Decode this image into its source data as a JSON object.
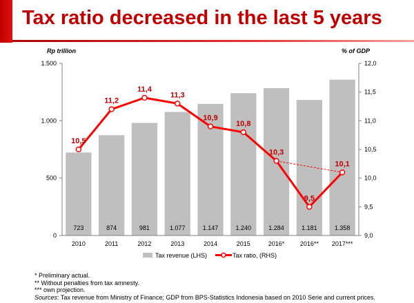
{
  "header": {
    "title": "Tax ratio decreased in the last 5 years"
  },
  "chart_data": {
    "type": "bar+line",
    "categories": [
      "2010",
      "2011",
      "2012",
      "2013",
      "2014",
      "2015",
      "2016*",
      "2016**",
      "2017***"
    ],
    "series": [
      {
        "name": "Tax revenue (LHS)",
        "type": "bar",
        "axis": "left",
        "values": [
          723,
          874,
          981,
          1077,
          1147,
          1240,
          1284,
          1181,
          1358
        ],
        "labels": [
          "723",
          "874",
          "981",
          "1.077",
          "1.147",
          "1.240",
          "1.284",
          "1.181",
          "1.358"
        ]
      },
      {
        "name": "Tax ratio, (RHS)",
        "type": "line",
        "axis": "right",
        "values": [
          10.5,
          11.2,
          11.4,
          11.3,
          10.9,
          10.8,
          10.3,
          9.5,
          10.1
        ],
        "labels": [
          "10,5",
          "11,2",
          "11,4",
          "11,3",
          "10,9",
          "10,8",
          "10,3",
          "9,5",
          "10,1"
        ]
      }
    ],
    "dashed_connector": {
      "from": "2016*",
      "to": "2017***"
    },
    "left_axis": {
      "label": "Rp trillion",
      "ylim": [
        0,
        1500
      ],
      "ticks": [
        0,
        500,
        1000,
        1500
      ],
      "tick_labels": [
        "0",
        "500",
        "1.000",
        "1.500"
      ]
    },
    "right_axis": {
      "label": "% of GDP",
      "ylim": [
        9.0,
        12.0
      ],
      "ticks": [
        9.0,
        9.5,
        10.0,
        10.5,
        11.0,
        11.5,
        12.0
      ],
      "tick_labels": [
        "9,0",
        "9,5",
        "10,0",
        "10,5",
        "11,0",
        "11,5",
        "12,0"
      ]
    },
    "legend_position": "bottom",
    "grid": false,
    "colors": {
      "bar": "#bfbfbf",
      "line": "#ff0000",
      "label": "#c00000"
    }
  },
  "footnotes": {
    "n1": "* Preliminary actual.",
    "n2": "** Without penalties from tax amnesty.",
    "n3": "*** own projection.",
    "sources_label": "Sources",
    "sources_text": ": Tax revenue from Ministry of Finance; GDP from BPS-Statistics Indonesia based on 2010 Serie and current prices."
  }
}
